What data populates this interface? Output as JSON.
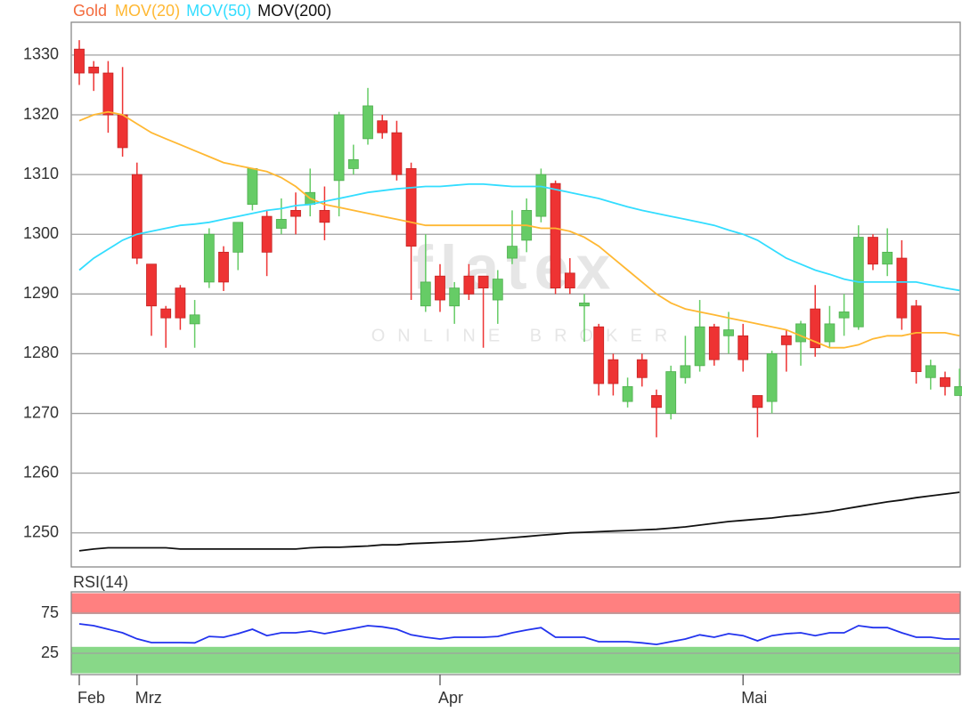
{
  "chart_data": [
    {
      "type": "candlestick",
      "watermark": [
        "flatex",
        "ONLINE BROKER"
      ],
      "categories": [
        "Feb",
        null,
        null,
        null,
        "Mrz",
        null,
        null,
        null,
        null,
        null,
        null,
        null,
        null,
        null,
        null,
        null,
        null,
        null,
        null,
        null,
        null,
        null,
        null,
        null,
        null,
        "Apr",
        null,
        null,
        null,
        null,
        null,
        null,
        null,
        null,
        null,
        null,
        null,
        null,
        null,
        null,
        null,
        null,
        null,
        null,
        null,
        null,
        "Mai",
        null,
        null,
        null,
        null,
        null,
        null,
        null,
        null,
        null,
        null,
        null,
        null,
        null,
        null,
        null
      ],
      "candles": {
        "name": "Gold",
        "color": "#f36a3c",
        "up_color": "#66cc66",
        "down_color": "#ee3333",
        "open": [
          1331,
          1328,
          1327,
          1320,
          1310,
          1295,
          1287.5,
          1291,
          1285,
          1292,
          1297,
          1297,
          1305,
          1303,
          1301,
          1304,
          1305,
          1304,
          1309,
          1311,
          1316,
          1319,
          1317,
          1311,
          1288,
          1293,
          1288,
          1293,
          1293,
          1289,
          1296,
          1299,
          1303,
          1308.5,
          1293.5,
          1288,
          1284.5,
          1279,
          1272,
          1279,
          1273,
          1270,
          1276,
          1278,
          1284.5,
          1283,
          1283,
          1273,
          1272,
          1283,
          1282,
          1287.5,
          1282,
          1286,
          1284.5,
          1299.5,
          1295,
          1296,
          1288,
          1276,
          1276,
          1273
        ],
        "high": [
          1332.5,
          1329,
          1329,
          1328,
          1312,
          1295,
          1288,
          1291.5,
          1289,
          1301,
          1298,
          1302,
          1311,
          1304,
          1306,
          1307,
          1311,
          1308,
          1320.5,
          1315,
          1324.5,
          1320,
          1319,
          1312,
          1300,
          1295,
          1292,
          1295,
          1293,
          1294,
          1304,
          1306,
          1311,
          1309,
          1296,
          1290,
          1285,
          1280,
          1276,
          1280,
          1274,
          1278,
          1283,
          1289,
          1285,
          1287,
          1285,
          1273,
          1280.5,
          1284,
          1285.5,
          1291.5,
          1288,
          1290,
          1301.5,
          1300,
          1301,
          1299,
          1289,
          1279,
          1277,
          1277.5
        ],
        "low": [
          1325,
          1324,
          1317,
          1313,
          1295,
          1283,
          1281,
          1284,
          1281,
          1291,
          1290.5,
          1294,
          1304,
          1293,
          1300,
          1300,
          1303,
          1299,
          1303,
          1310,
          1315,
          1316,
          1309,
          1289,
          1287,
          1287,
          1285,
          1289,
          1281,
          1285,
          1295,
          1297,
          1302,
          1290,
          1290,
          1282,
          1273,
          1273,
          1271,
          1274.5,
          1266,
          1269,
          1275,
          1277,
          1278,
          1280,
          1277,
          1266,
          1270,
          1277,
          1278,
          1279.5,
          1281,
          1283,
          1284,
          1294,
          1293,
          1284,
          1275,
          1274,
          1273,
          1273
        ],
        "close": [
          1327,
          1327,
          1320,
          1314.5,
          1296,
          1288,
          1286,
          1286,
          1286.5,
          1300,
          1292,
          1302,
          1311,
          1297,
          1302.5,
          1303,
          1307,
          1302,
          1320,
          1312.5,
          1321.5,
          1317,
          1310,
          1298,
          1292,
          1289,
          1291,
          1290,
          1291,
          1292.5,
          1298,
          1304,
          1310,
          1291,
          1291,
          1288.5,
          1275,
          1275,
          1274.5,
          1276,
          1271,
          1277,
          1278,
          1284.5,
          1279,
          1284,
          1279,
          1271,
          1280,
          1281.5,
          1285,
          1281,
          1285,
          1287,
          1299.5,
          1295,
          1297,
          1286,
          1277,
          1278,
          1274.5,
          1274.5
        ]
      },
      "series": [
        {
          "name": "MOV(20)",
          "color": "#ffb833",
          "values": [
            1319,
            1320,
            1320.5,
            1320,
            1318.5,
            1317,
            1316,
            1315,
            1314,
            1313,
            1312,
            1311.5,
            1311,
            1310.5,
            1309.5,
            1308,
            1306,
            1305,
            1304.5,
            1304,
            1303.5,
            1303,
            1302.5,
            1302,
            1301.5,
            1301.5,
            1301.5,
            1301.5,
            1301.5,
            1301.5,
            1301.5,
            1301.5,
            1301,
            1301,
            1300.5,
            1299.5,
            1298,
            1296,
            1294,
            1292,
            1290,
            1288.5,
            1287.5,
            1287,
            1286.5,
            1286,
            1285.5,
            1285,
            1284.5,
            1284,
            1283,
            1282,
            1281,
            1281,
            1281.5,
            1282.5,
            1283,
            1283,
            1283.5,
            1283.5,
            1283.5,
            1283
          ]
        },
        {
          "name": "MOV(50)",
          "color": "#33ddff",
          "values": [
            1294,
            1296,
            1297.5,
            1299,
            1300,
            1300.5,
            1301,
            1301.5,
            1301.7,
            1302,
            1302.5,
            1303,
            1303.5,
            1304,
            1304.3,
            1304.8,
            1305,
            1305.5,
            1306,
            1306.5,
            1307,
            1307.3,
            1307.6,
            1307.8,
            1308,
            1308,
            1308.2,
            1308.4,
            1308.4,
            1308.2,
            1308,
            1308,
            1308,
            1307.5,
            1307,
            1306.5,
            1306,
            1305.3,
            1304.6,
            1304,
            1303.5,
            1303,
            1302.5,
            1302,
            1301.5,
            1300.7,
            1300,
            1299,
            1297.5,
            1296,
            1295,
            1294,
            1293.3,
            1292.5,
            1292,
            1292,
            1292,
            1292,
            1292,
            1291.5,
            1291,
            1290.6
          ]
        },
        {
          "name": "MOV(200)",
          "color": "#111111",
          "values": [
            1247,
            1247.3,
            1247.5,
            1247.5,
            1247.5,
            1247.5,
            1247.5,
            1247.3,
            1247.3,
            1247.3,
            1247.3,
            1247.3,
            1247.3,
            1247.3,
            1247.3,
            1247.3,
            1247.5,
            1247.6,
            1247.6,
            1247.7,
            1247.8,
            1248,
            1248,
            1248.2,
            1248.3,
            1248.4,
            1248.5,
            1248.6,
            1248.8,
            1249,
            1249.2,
            1249.4,
            1249.6,
            1249.8,
            1250,
            1250.1,
            1250.2,
            1250.3,
            1250.4,
            1250.5,
            1250.6,
            1250.8,
            1251,
            1251.3,
            1251.6,
            1251.9,
            1252.1,
            1252.3,
            1252.5,
            1252.8,
            1253,
            1253.3,
            1253.6,
            1254,
            1254.4,
            1254.8,
            1255.2,
            1255.5,
            1255.9,
            1256.2,
            1256.5,
            1256.8
          ]
        }
      ],
      "ylim": [
        1244.3,
        1335.5
      ],
      "yticks": [
        1250,
        1260,
        1270,
        1280,
        1290,
        1300,
        1310,
        1320,
        1330
      ],
      "grid": true
    },
    {
      "type": "line",
      "title": "RSI(14)",
      "title_color": "#1a1aff",
      "series": [
        {
          "color": "#2233ee",
          "values": [
            61.7,
            59.5,
            55,
            50.5,
            43,
            38.3,
            38.3,
            38.3,
            38,
            46,
            45,
            49.5,
            55,
            47,
            50.5,
            50.5,
            52.8,
            49.5,
            52.8,
            56,
            59.5,
            58,
            55,
            48,
            45,
            42.8,
            45,
            45,
            45,
            46,
            50.5,
            54,
            57,
            45,
            45,
            45,
            39.4,
            39.4,
            39.4,
            38,
            36,
            39.4,
            42.8,
            48,
            45,
            49.5,
            47,
            40.5,
            47,
            49.5,
            50.5,
            47,
            50.5,
            50.5,
            59.5,
            57,
            57,
            50.5,
            45,
            45,
            42.8,
            42.8
          ]
        }
      ],
      "bands": [
        {
          "range": [
            74,
            100
          ],
          "color": "#ff8080"
        },
        {
          "range": [
            0,
            33
          ],
          "color": "#88d888"
        }
      ],
      "ylim": [
        0,
        100
      ],
      "yticks": [
        25,
        75
      ],
      "grid": true
    }
  ]
}
